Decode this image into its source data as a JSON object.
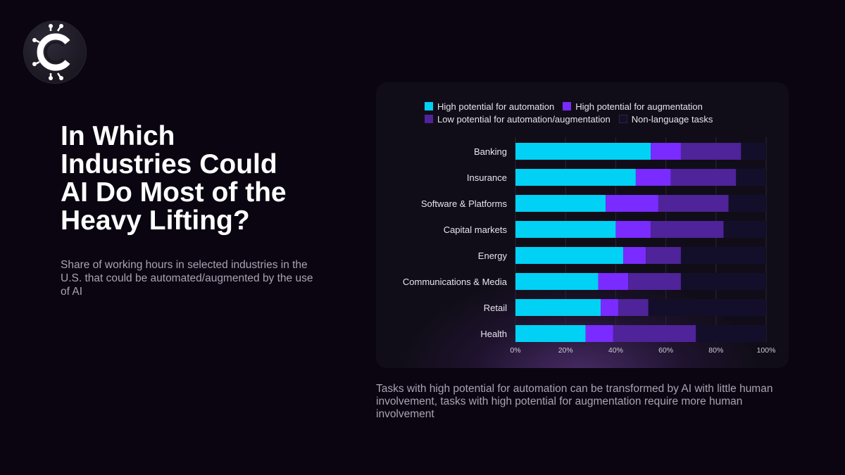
{
  "brand": {
    "logo_icon": "circuit-c-logo-icon"
  },
  "header": {
    "title": "In Which\nIndustries Could\nAI Do Most of the\nHeavy Lifting?",
    "subtitle": "Share of working hours in selected industries in the U.S. that could be automated/augmented by the use of AI"
  },
  "footer": {
    "caption": "Tasks with high potential for automation can be transformed by AI with little human involvement, tasks with high potential for augmentation require more human involvement"
  },
  "colors": {
    "automation": "#00d1f5",
    "augmentation": "#7a2bff",
    "low": "#4f239a",
    "non_language": "#130f2b",
    "axis_text": "#cfcbd6",
    "label_text": "#e8e5ee"
  },
  "chart_data": {
    "type": "bar",
    "orientation": "horizontal",
    "stacked": true,
    "title": "",
    "xlabel": "",
    "ylabel": "",
    "xlim": [
      0,
      100
    ],
    "x_ticks": [
      "0%",
      "20%",
      "40%",
      "60%",
      "80%",
      "100%"
    ],
    "grid": true,
    "legend_position": "top",
    "categories": [
      "Banking",
      "Insurance",
      "Software & Platforms",
      "Capital markets",
      "Energy",
      "Communications & Media",
      "Retail",
      "Health"
    ],
    "series": [
      {
        "name": "High potential for automation",
        "color_key": "automation",
        "values": [
          54,
          48,
          36,
          40,
          43,
          33,
          34,
          28
        ]
      },
      {
        "name": "High potential for augmentation",
        "color_key": "augmentation",
        "values": [
          12,
          14,
          21,
          14,
          9,
          12,
          7,
          11
        ]
      },
      {
        "name": "Low potential for automation/augmentation",
        "color_key": "low",
        "values": [
          24,
          26,
          28,
          29,
          14,
          21,
          12,
          33
        ]
      },
      {
        "name": "Non-language tasks",
        "color_key": "non_language",
        "values": [
          10,
          12,
          15,
          17,
          34,
          34,
          47,
          28
        ]
      }
    ]
  }
}
